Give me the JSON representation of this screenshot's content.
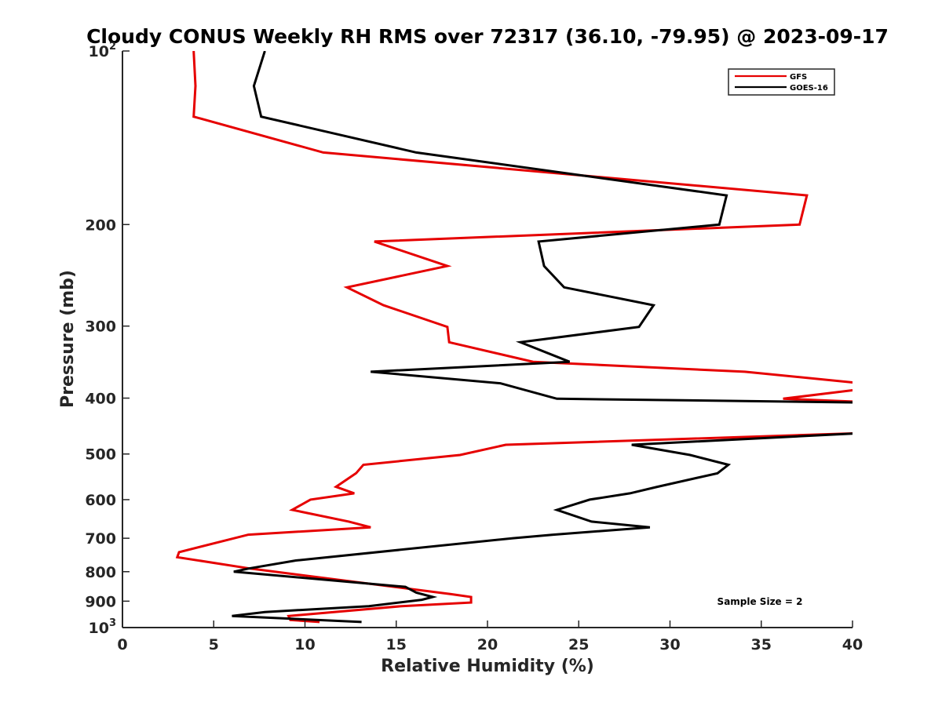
{
  "chart_data": {
    "type": "line",
    "title": "Cloudy CONUS Weekly RH RMS over 72317 (36.10, -79.95) @ 2023-09-17",
    "xlabel": "Relative Humidity (%)",
    "ylabel": "Pressure (mb)",
    "xlim": [
      0,
      40
    ],
    "ylim": [
      100,
      1000
    ],
    "y_scale": "log",
    "y_reversed": true,
    "grid": false,
    "legend_position": "top-right",
    "annotation": "Sample Size = 2",
    "x_ticks": [
      "0",
      "5",
      "10",
      "15",
      "20",
      "25",
      "30",
      "35",
      "40"
    ],
    "x_tick_values": [
      0,
      5,
      10,
      15,
      20,
      25,
      30,
      35,
      40
    ],
    "y_ticks": [
      {
        "value": 100,
        "base": "10",
        "sup": "2"
      },
      {
        "value": 200,
        "base": "200",
        "sup": ""
      },
      {
        "value": 300,
        "base": "300",
        "sup": ""
      },
      {
        "value": 400,
        "base": "400",
        "sup": ""
      },
      {
        "value": 500,
        "base": "500",
        "sup": ""
      },
      {
        "value": 600,
        "base": "600",
        "sup": ""
      },
      {
        "value": 700,
        "base": "700",
        "sup": ""
      },
      {
        "value": 800,
        "base": "800",
        "sup": ""
      },
      {
        "value": 900,
        "base": "900",
        "sup": ""
      },
      {
        "value": 1000,
        "base": "10",
        "sup": "3"
      }
    ],
    "series": [
      {
        "name": "GFS",
        "color": "#e60000",
        "points": [
          [
            3.9,
            100
          ],
          [
            4.0,
            115
          ],
          [
            3.9,
            130
          ],
          [
            11,
            150
          ],
          [
            37.5,
            178
          ],
          [
            37.1,
            200
          ],
          [
            13.8,
            214
          ],
          [
            17.8,
            236
          ],
          [
            12.3,
            257
          ],
          [
            14.3,
            276
          ],
          [
            17.8,
            301
          ],
          [
            17.9,
            320
          ],
          [
            22.5,
            346
          ],
          [
            34.1,
            360
          ],
          [
            40.5,
            377
          ],
          [
            40.5,
            386
          ],
          [
            36.2,
            401
          ],
          [
            40.5,
            406
          ],
          [
            40.5,
            460
          ],
          [
            21,
            482
          ],
          [
            18.5,
            502
          ],
          [
            13.2,
            522
          ],
          [
            12.8,
            540
          ],
          [
            11.7,
            570
          ],
          [
            12.7,
            585
          ],
          [
            10.3,
            600
          ],
          [
            9.3,
            625
          ],
          [
            12.4,
            655
          ],
          [
            13.6,
            670
          ],
          [
            6.9,
            690
          ],
          [
            3.1,
            740
          ],
          [
            3.0,
            755
          ],
          [
            7,
            790
          ],
          [
            18,
            875
          ],
          [
            19.1,
            885
          ],
          [
            19.1,
            905
          ],
          [
            15.3,
            918
          ],
          [
            9.1,
            955
          ],
          [
            9.2,
            970
          ],
          [
            10.8,
            978
          ]
        ]
      },
      {
        "name": "GOES-16",
        "color": "#000000",
        "points": [
          [
            7.8,
            100
          ],
          [
            7.2,
            115
          ],
          [
            7.6,
            130
          ],
          [
            16.1,
            150
          ],
          [
            33.1,
            178
          ],
          [
            32.7,
            200
          ],
          [
            22.8,
            214
          ],
          [
            23.1,
            236
          ],
          [
            24.2,
            257
          ],
          [
            29.1,
            276
          ],
          [
            28.3,
            301
          ],
          [
            21.8,
            320
          ],
          [
            24.5,
            346
          ],
          [
            13.6,
            360
          ],
          [
            20.7,
            377
          ],
          [
            23.8,
            401
          ],
          [
            40.5,
            407
          ],
          [
            40.5,
            460
          ],
          [
            27.9,
            482
          ],
          [
            31.1,
            502
          ],
          [
            33.2,
            522
          ],
          [
            32.6,
            540
          ],
          [
            29.3,
            570
          ],
          [
            27.8,
            585
          ],
          [
            25.6,
            600
          ],
          [
            23.8,
            625
          ],
          [
            25.7,
            655
          ],
          [
            28.9,
            670
          ],
          [
            23.6,
            690
          ],
          [
            21.4,
            700
          ],
          [
            9.5,
            765
          ],
          [
            6.9,
            790
          ],
          [
            6.1,
            800
          ],
          [
            15.5,
            850
          ],
          [
            16.1,
            870
          ],
          [
            17.0,
            885
          ],
          [
            16.4,
            895
          ],
          [
            13.5,
            918
          ],
          [
            7.8,
            940
          ],
          [
            6.0,
            955
          ],
          [
            13.1,
            978
          ]
        ]
      }
    ]
  }
}
